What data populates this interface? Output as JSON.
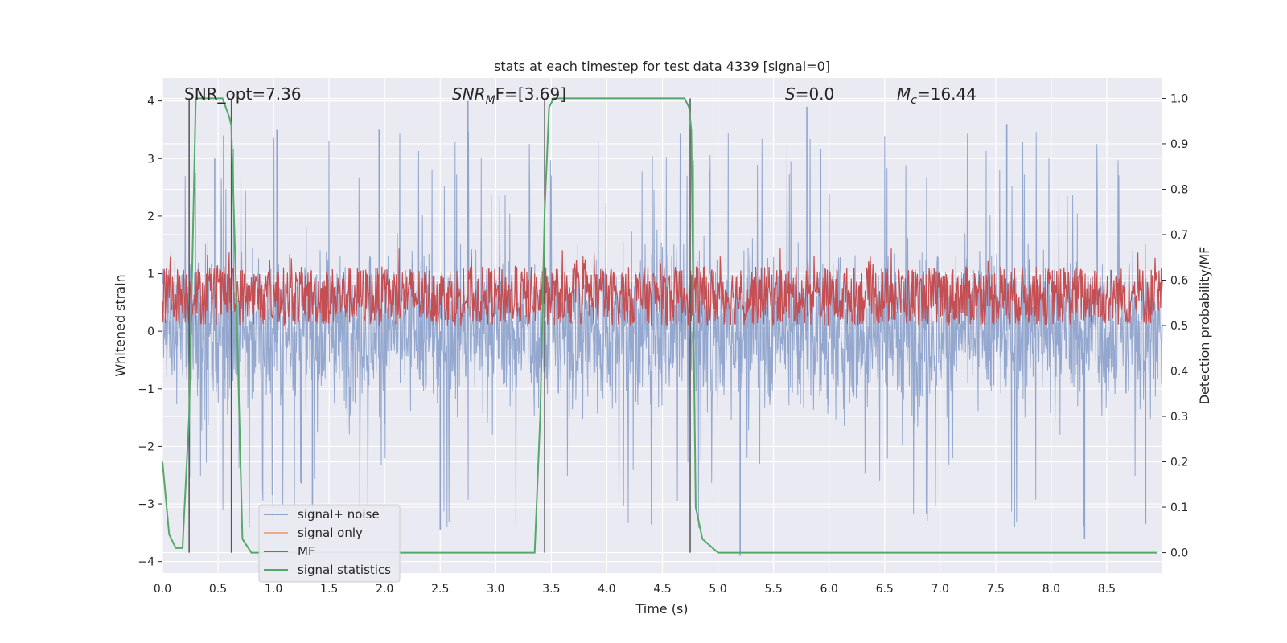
{
  "chart_data": {
    "type": "line",
    "title": "stats at each timestep for test data 4339 [signal=0]",
    "xlabel": "Time (s)",
    "ylabel": "Whitened strain",
    "y2label": "Detection probability/MF",
    "xlim": [
      0.0,
      9.0
    ],
    "ylim": [
      -4.2,
      4.4
    ],
    "y2lim": [
      -0.045,
      1.045
    ],
    "xticks": [
      "0.0",
      "0.5",
      "1.0",
      "1.5",
      "2.0",
      "2.5",
      "3.0",
      "3.5",
      "4.0",
      "4.5",
      "5.0",
      "5.5",
      "6.0",
      "6.5",
      "7.0",
      "7.5",
      "8.0",
      "8.5"
    ],
    "yticks": [
      "4",
      "3",
      "2",
      "1",
      "0",
      "−1",
      "−2",
      "−3",
      "−4"
    ],
    "y2ticks": [
      "1.0",
      "0.9",
      "0.8",
      "0.7",
      "0.6",
      "0.5",
      "0.4",
      "0.3",
      "0.2",
      "0.1",
      "0.0"
    ],
    "grid": true,
    "legend_position": "lower-left",
    "annotations": {
      "snr_opt": "SNR_opt=7.36",
      "snr_mf_sym": "SNR",
      "snr_mf_sub": "M",
      "snr_mf_rest": "F=[3.69]",
      "s_sym": "S",
      "s_rest": "=0.0",
      "mc_sym": "M",
      "mc_sub": "c",
      "mc_rest": "=16.44"
    },
    "series": [
      {
        "name": "signal+ noise",
        "color": "#8fa4cc",
        "axis": "left",
        "description_values": {
          "band_min": -1.3,
          "band_max": 1.3,
          "spike_min": -3.9,
          "spike_max": 3.9
        },
        "peaks": [
          [
            0.47,
            3.0
          ],
          [
            0.55,
            3.4
          ],
          [
            1.03,
            3.5
          ],
          [
            1.95,
            3.5
          ],
          [
            2.75,
            4.0
          ],
          [
            5.8,
            3.9
          ],
          [
            7.6,
            3.6
          ],
          [
            1.35,
            -3.3
          ],
          [
            2.5,
            -3.45
          ],
          [
            5.2,
            -3.9
          ],
          [
            8.3,
            -3.6
          ],
          [
            8.85,
            -3.35
          ]
        ]
      },
      {
        "name": "signal only",
        "color": "#f0a98a",
        "axis": "left",
        "values_note": "0"
      },
      {
        "name": "MF",
        "color": "#c44e52",
        "axis": "right",
        "band": [
          0.5,
          0.63
        ]
      },
      {
        "name": "signal statistics",
        "color": "#55a868",
        "axis": "right",
        "x": [
          0.0,
          0.06,
          0.12,
          0.18,
          0.24,
          0.3,
          0.36,
          0.42,
          0.48,
          0.54,
          0.6,
          0.62,
          0.66,
          0.72,
          0.8,
          0.9,
          1.2,
          2.0,
          3.0,
          3.35,
          3.4,
          3.44,
          3.48,
          3.52,
          3.6,
          4.0,
          4.5,
          4.7,
          4.74,
          4.76,
          4.78,
          4.8,
          4.86,
          5.0,
          6.0,
          7.0,
          8.0,
          8.95
        ],
        "y": [
          0.2,
          0.04,
          0.01,
          0.01,
          0.3,
          1.0,
          1.0,
          1.0,
          1.0,
          1.0,
          0.96,
          0.94,
          0.6,
          0.03,
          0.0,
          0.0,
          0.0,
          0.0,
          0.0,
          0.0,
          0.3,
          0.75,
          0.98,
          1.0,
          1.0,
          1.0,
          1.0,
          1.0,
          0.98,
          0.93,
          0.5,
          0.1,
          0.03,
          0.0,
          0.0,
          0.0,
          0.0,
          0.0
        ]
      }
    ],
    "vlines_x": [
      0.24,
      0.62,
      3.44,
      4.75
    ],
    "vline_color": "#555555"
  }
}
